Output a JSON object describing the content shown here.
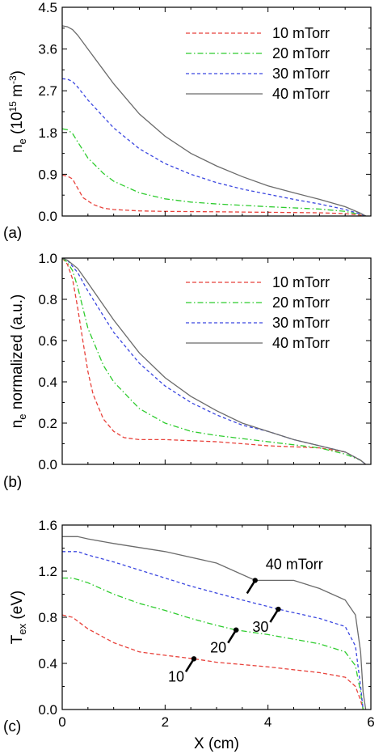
{
  "colors": {
    "10 mTorr": "#e8413a",
    "20 mTorr": "#2ecc2e",
    "30 mTorr": "#3b47e0",
    "40 mTorr": "#6b6b6b"
  },
  "chart_data": [
    {
      "type": "line",
      "panel_label": "(a)",
      "ylabel_main": "n",
      "ylabel_sub": "e",
      "ylabel_rest": " (10",
      "ylabel_exp": "15",
      "ylabel_unit": " m",
      "ylabel_unit_exp": "-3",
      "ylabel_close": ")",
      "xlim": [
        0,
        6
      ],
      "ylim": [
        0,
        4.5
      ],
      "x_ticks": [
        0,
        2,
        4,
        6
      ],
      "y_ticks": [
        "0.0",
        "0.9",
        "1.8",
        "2.7",
        "3.6",
        "4.5"
      ],
      "legend_position": "top-right",
      "series": [
        {
          "name": "10 mTorr",
          "style": "dashed",
          "x": [
            0,
            0.1,
            0.2,
            0.3,
            0.4,
            0.6,
            0.8,
            1.0,
            1.5,
            2,
            3,
            4,
            5,
            5.5,
            5.8,
            5.9
          ],
          "y": [
            0.88,
            0.86,
            0.8,
            0.6,
            0.4,
            0.25,
            0.17,
            0.14,
            0.11,
            0.1,
            0.09,
            0.08,
            0.07,
            0.05,
            0.02,
            0.0
          ]
        },
        {
          "name": "20 mTorr",
          "style": "dashdot",
          "x": [
            0,
            0.1,
            0.2,
            0.3,
            0.5,
            0.8,
            1.0,
            1.5,
            2,
            2.5,
            3,
            4,
            5,
            5.5,
            5.8,
            5.9
          ],
          "y": [
            1.88,
            1.86,
            1.78,
            1.6,
            1.25,
            0.92,
            0.75,
            0.5,
            0.37,
            0.3,
            0.26,
            0.2,
            0.15,
            0.1,
            0.03,
            0.0
          ]
        },
        {
          "name": "30 mTorr",
          "style": "dotted",
          "x": [
            0,
            0.1,
            0.2,
            0.3,
            0.5,
            1.0,
            1.5,
            2,
            2.5,
            3,
            3.5,
            4,
            4.5,
            5,
            5.5,
            5.8,
            5.9
          ],
          "y": [
            2.96,
            2.95,
            2.9,
            2.78,
            2.5,
            1.9,
            1.45,
            1.13,
            0.9,
            0.72,
            0.58,
            0.47,
            0.36,
            0.26,
            0.14,
            0.04,
            0.0
          ]
        },
        {
          "name": "40 mTorr",
          "style": "solid",
          "x": [
            0,
            0.1,
            0.2,
            0.3,
            0.5,
            1.0,
            1.5,
            2,
            2.5,
            3,
            3.5,
            4,
            4.5,
            5,
            5.5,
            5.8,
            5.9
          ],
          "y": [
            4.1,
            4.08,
            4.02,
            3.9,
            3.6,
            2.85,
            2.2,
            1.72,
            1.35,
            1.08,
            0.85,
            0.65,
            0.5,
            0.36,
            0.2,
            0.06,
            0.0
          ]
        }
      ]
    },
    {
      "type": "line",
      "panel_label": "(b)",
      "ylabel_main": "n",
      "ylabel_sub": "e",
      "ylabel_rest": " normalized (a.u.)",
      "xlim": [
        0,
        6
      ],
      "ylim": [
        0,
        1.0
      ],
      "x_ticks": [
        0,
        2,
        4,
        6
      ],
      "y_ticks": [
        "0.0",
        "0.2",
        "0.4",
        "0.6",
        "0.8",
        "1.0"
      ],
      "legend_position": "top-right",
      "series": [
        {
          "name": "10 mTorr",
          "style": "dashed",
          "x": [
            0,
            0.1,
            0.2,
            0.3,
            0.4,
            0.5,
            0.6,
            0.8,
            1.0,
            1.2,
            1.5,
            2,
            3,
            4,
            5,
            5.5,
            5.8,
            5.9
          ],
          "y": [
            1.0,
            0.97,
            0.9,
            0.76,
            0.6,
            0.45,
            0.34,
            0.22,
            0.16,
            0.13,
            0.12,
            0.12,
            0.11,
            0.09,
            0.08,
            0.06,
            0.02,
            0.0
          ]
        },
        {
          "name": "20 mTorr",
          "style": "dashdot",
          "x": [
            0,
            0.1,
            0.2,
            0.3,
            0.5,
            0.8,
            1.0,
            1.5,
            2,
            2.5,
            3,
            4,
            5,
            5.5,
            5.8,
            5.9
          ],
          "y": [
            1.0,
            0.98,
            0.94,
            0.86,
            0.66,
            0.48,
            0.4,
            0.27,
            0.2,
            0.16,
            0.14,
            0.11,
            0.08,
            0.05,
            0.02,
            0.0
          ]
        },
        {
          "name": "30 mTorr",
          "style": "dotted",
          "x": [
            0,
            0.1,
            0.2,
            0.3,
            0.5,
            1.0,
            1.5,
            2,
            2.5,
            3,
            3.5,
            4,
            4.5,
            5,
            5.5,
            5.8,
            5.9
          ],
          "y": [
            1.0,
            0.99,
            0.96,
            0.93,
            0.84,
            0.64,
            0.49,
            0.38,
            0.3,
            0.24,
            0.19,
            0.16,
            0.12,
            0.09,
            0.06,
            0.02,
            0.0
          ]
        },
        {
          "name": "40 mTorr",
          "style": "solid",
          "x": [
            0,
            0.1,
            0.2,
            0.3,
            0.5,
            1.0,
            1.5,
            2,
            2.5,
            3,
            3.5,
            4,
            4.5,
            5,
            5.5,
            5.8,
            5.9
          ],
          "y": [
            1.0,
            0.99,
            0.97,
            0.95,
            0.88,
            0.7,
            0.54,
            0.42,
            0.33,
            0.26,
            0.2,
            0.16,
            0.12,
            0.09,
            0.06,
            0.02,
            0.0
          ]
        }
      ]
    },
    {
      "type": "line",
      "panel_label": "(c)",
      "ylabel_main": "T",
      "ylabel_sub": "ex",
      "ylabel_rest": " (eV)",
      "xlabel": "X (cm)",
      "xlim": [
        0,
        6
      ],
      "ylim": [
        0,
        1.6
      ],
      "x_ticks": [
        0,
        2,
        4,
        6
      ],
      "y_ticks": [
        "0.0",
        "0.4",
        "0.8",
        "1.2",
        "1.6"
      ],
      "annotations": [
        {
          "text": "40 mTorr",
          "series": "40 mTorr",
          "at_x": 3.75
        },
        {
          "text": "30",
          "series": "30 mTorr",
          "at_x": 4.2
        },
        {
          "text": "20",
          "series": "20 mTorr",
          "at_x": 3.38
        },
        {
          "text": "10",
          "series": "10 mTorr",
          "at_x": 2.56
        }
      ],
      "series": [
        {
          "name": "10 mTorr",
          "style": "dashed",
          "x": [
            0,
            0.2,
            0.5,
            1.0,
            1.5,
            2.0,
            2.56,
            3,
            4,
            5,
            5.5,
            5.7,
            5.8,
            5.85
          ],
          "y": [
            0.82,
            0.8,
            0.7,
            0.58,
            0.5,
            0.47,
            0.44,
            0.41,
            0.37,
            0.32,
            0.28,
            0.2,
            0.08,
            0.0
          ]
        },
        {
          "name": "20 mTorr",
          "style": "dashdot",
          "x": [
            0,
            0.2,
            0.5,
            1.0,
            1.5,
            2.0,
            2.5,
            3.0,
            3.38,
            4,
            5,
            5.5,
            5.7,
            5.8,
            5.85
          ],
          "y": [
            1.14,
            1.14,
            1.1,
            1.0,
            0.92,
            0.86,
            0.79,
            0.73,
            0.69,
            0.65,
            0.57,
            0.5,
            0.38,
            0.15,
            0.0
          ]
        },
        {
          "name": "30 mTorr",
          "style": "dotted",
          "x": [
            0,
            0.3,
            0.5,
            1.0,
            1.5,
            2.0,
            2.5,
            3.0,
            3.5,
            4.2,
            5.0,
            5.5,
            5.7,
            5.8,
            5.85
          ],
          "y": [
            1.37,
            1.37,
            1.34,
            1.28,
            1.21,
            1.14,
            1.07,
            1.01,
            0.95,
            0.87,
            0.79,
            0.72,
            0.55,
            0.2,
            0.0
          ]
        },
        {
          "name": "40 mTorr",
          "style": "solid",
          "x": [
            0,
            0.3,
            0.5,
            1.0,
            2.0,
            3.0,
            3.75,
            4.5,
            5.0,
            5.5,
            5.7,
            5.8,
            5.85,
            5.9
          ],
          "y": [
            1.5,
            1.5,
            1.48,
            1.44,
            1.37,
            1.27,
            1.12,
            1.12,
            1.05,
            0.95,
            0.82,
            0.5,
            0.15,
            0.0
          ]
        }
      ]
    }
  ]
}
